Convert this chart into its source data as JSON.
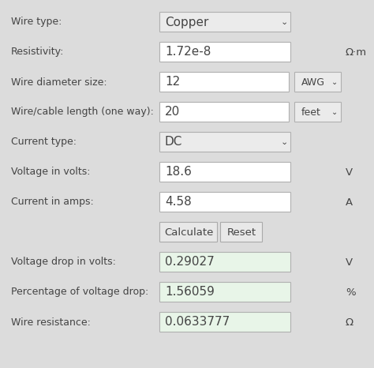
{
  "background_color": "#dcdcdc",
  "rows": [
    {
      "label": "Wire type:",
      "value": "Copper",
      "type": "dropdown_full",
      "dd_label": "",
      "green_bg": false,
      "unit": ""
    },
    {
      "label": "Resistivity:",
      "value": "1.72e-8",
      "type": "input",
      "dd_label": "",
      "green_bg": false,
      "unit": "Ω·m"
    },
    {
      "label": "Wire diameter size:",
      "value": "12",
      "type": "input_dd",
      "dd_label": "AWG",
      "green_bg": false,
      "unit": ""
    },
    {
      "label": "Wire/cable length (one way):",
      "value": "20",
      "type": "input_dd",
      "dd_label": "feet",
      "green_bg": false,
      "unit": ""
    },
    {
      "label": "Current type:",
      "value": "DC",
      "type": "dropdown_full",
      "dd_label": "",
      "green_bg": false,
      "unit": ""
    },
    {
      "label": "Voltage in volts:",
      "value": "18.6",
      "type": "input",
      "dd_label": "",
      "green_bg": false,
      "unit": "V"
    },
    {
      "label": "Current in amps:",
      "value": "4.58",
      "type": "input",
      "dd_label": "",
      "green_bg": false,
      "unit": "A"
    },
    {
      "label": "",
      "value": "",
      "type": "buttons",
      "dd_label": "",
      "green_bg": false,
      "unit": ""
    },
    {
      "label": "Voltage drop in volts:",
      "value": "0.29027",
      "type": "input",
      "dd_label": "",
      "green_bg": true,
      "unit": "V"
    },
    {
      "label": "Percentage of voltage drop:",
      "value": "1.56059",
      "type": "input",
      "dd_label": "",
      "green_bg": true,
      "unit": "%"
    },
    {
      "label": "Wire resistance:",
      "value": "0.0633777",
      "type": "input",
      "dd_label": "",
      "green_bg": true,
      "unit": "Ω"
    }
  ],
  "field_bg": "#ffffff",
  "field_green_bg": "#e8f5e8",
  "dropdown_bg": "#ebebeb",
  "border_color": "#b0b0b0",
  "text_color": "#444444",
  "label_color": "#444444",
  "btn_calculate_label": "Calculate",
  "btn_reset_label": "Reset",
  "btn_bg": "#e8e8e8",
  "btn_border": "#aaaaaa",
  "value_fontsize": 11,
  "label_fontsize": 9,
  "unit_fontsize": 9.5,
  "btn_fontsize": 9.5
}
